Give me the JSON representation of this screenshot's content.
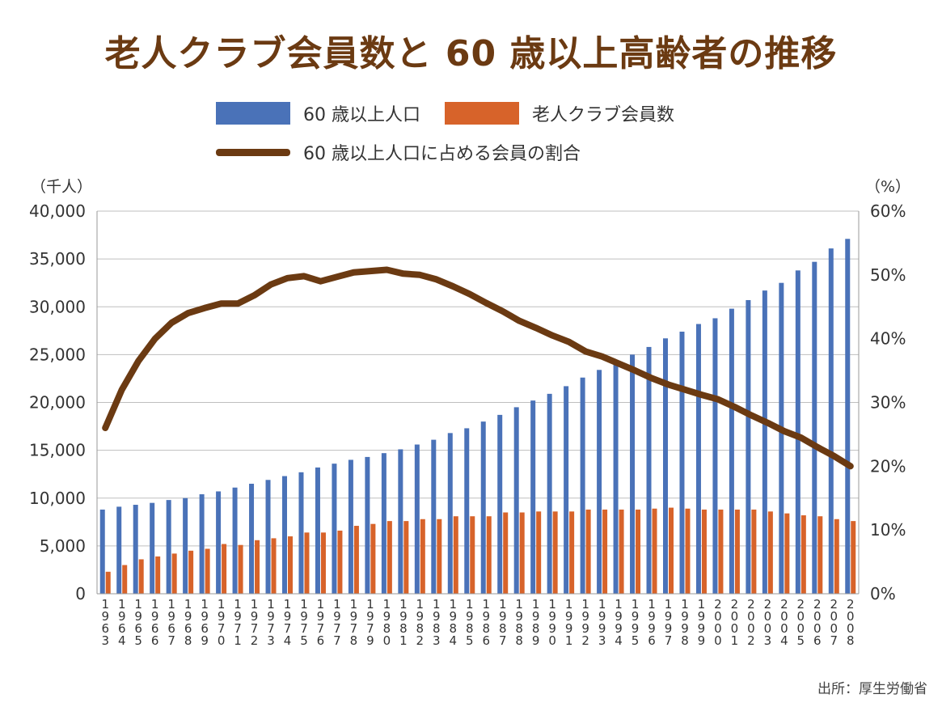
{
  "title": "老人クラブ会員数と 60 歳以上高齢者の推移",
  "legend": {
    "population": "60 歳以上人口",
    "members": "老人クラブ会員数",
    "ratio": "60 歳以上人口に占める会員の割合"
  },
  "units": {
    "left": "（千人）",
    "right": "（%）"
  },
  "source": "出所：厚生労働省",
  "colors": {
    "population": "#4a72b8",
    "members": "#d7632a",
    "ratio": "#6b3a12",
    "grid": "#bfbfbf"
  },
  "chart_data": {
    "type": "bar",
    "categories": [
      "1963",
      "1964",
      "1965",
      "1966",
      "1967",
      "1968",
      "1969",
      "1970",
      "1971",
      "1972",
      "1973",
      "1974",
      "1975",
      "1976",
      "1977",
      "1978",
      "1979",
      "1980",
      "1981",
      "1982",
      "1983",
      "1984",
      "1985",
      "1986",
      "1987",
      "1988",
      "1989",
      "1990",
      "1991",
      "1992",
      "1993",
      "1994",
      "1995",
      "1996",
      "1997",
      "1998",
      "1999",
      "2000",
      "2001",
      "2002",
      "2003",
      "2004",
      "2005",
      "2006",
      "2007",
      "2008"
    ],
    "series": [
      {
        "name": "60 歳以上人口",
        "type": "bar",
        "axis": "left",
        "values": [
          8800,
          9100,
          9300,
          9500,
          9800,
          10000,
          10400,
          10700,
          11100,
          11500,
          11900,
          12300,
          12700,
          13200,
          13600,
          14000,
          14300,
          14700,
          15100,
          15600,
          16100,
          16800,
          17300,
          18000,
          18700,
          19500,
          20200,
          20900,
          21700,
          22600,
          23400,
          24200,
          25000,
          25800,
          26700,
          27400,
          28200,
          28800,
          29800,
          30700,
          31700,
          32500,
          33800,
          34700,
          36100,
          37100
        ]
      },
      {
        "name": "老人クラブ会員数",
        "type": "bar",
        "axis": "left",
        "values": [
          2300,
          3000,
          3600,
          3900,
          4200,
          4500,
          4700,
          5200,
          5100,
          5600,
          5800,
          6000,
          6400,
          6400,
          6600,
          7100,
          7300,
          7600,
          7600,
          7800,
          7800,
          8100,
          8100,
          8100,
          8500,
          8500,
          8600,
          8600,
          8600,
          8800,
          8800,
          8800,
          8800,
          8900,
          9000,
          8900,
          8800,
          8800,
          8800,
          8800,
          8600,
          8400,
          8200,
          8100,
          7800,
          7600
        ]
      },
      {
        "name": "60 歳以上人口に占める会員の割合",
        "type": "line",
        "axis": "right",
        "values": [
          26,
          32,
          36.5,
          40,
          42.5,
          44,
          44.8,
          45.5,
          45.5,
          46.8,
          48.5,
          49.5,
          49.8,
          49,
          49.7,
          50.4,
          50.6,
          50.8,
          50.2,
          50,
          49.3,
          48.2,
          47,
          45.6,
          44.3,
          42.8,
          41.7,
          40.5,
          39.5,
          38,
          37.2,
          36.1,
          35,
          33.8,
          32.8,
          32,
          31.2,
          30.5,
          29.3,
          28,
          26.8,
          25.5,
          24.5,
          23,
          21.6,
          20
        ]
      }
    ],
    "y_left": {
      "min": 0,
      "max": 40000,
      "ticks": [
        "0",
        "5,000",
        "10,000",
        "15,000",
        "20,000",
        "25,000",
        "30,000",
        "35,000",
        "40,000"
      ]
    },
    "y_right": {
      "min": 0,
      "max": 60,
      "ticks": [
        "0%",
        "10%",
        "20%",
        "30%",
        "40%",
        "50%",
        "60%"
      ]
    },
    "grid": true,
    "legend_position": "top"
  }
}
